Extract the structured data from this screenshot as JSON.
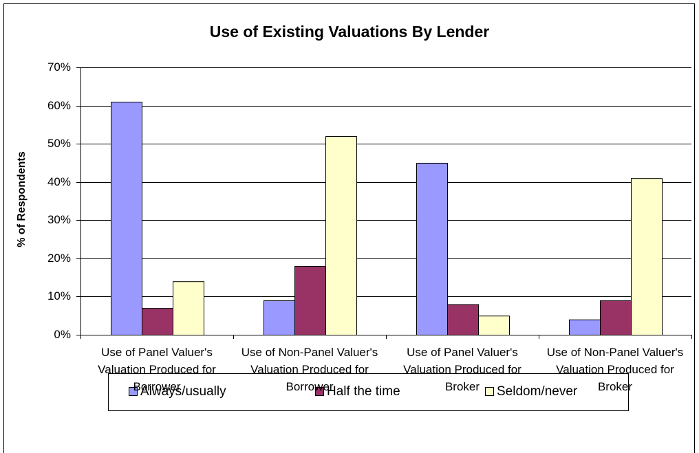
{
  "chart_data": {
    "type": "bar",
    "title": "Use of Existing Valuations By Lender",
    "y_label": "% of Respondents",
    "categories": [
      "Use of Panel Valuer's Valuation Produced for Borrower",
      "Use of Non-Panel Valuer's Valuation Produced for Borrower",
      "Use of Panel Valuer's Valuation Produced for Broker",
      "Use of Non-Panel Valuer's Valuation Produced for Broker"
    ],
    "series": [
      {
        "name": "Always/usually",
        "color": "#9999ff",
        "values": [
          61,
          9,
          45,
          4
        ]
      },
      {
        "name": "Half the time",
        "color": "#993366",
        "values": [
          7,
          18,
          8,
          9
        ]
      },
      {
        "name": "Seldom/never",
        "color": "#ffffcc",
        "values": [
          14,
          52,
          5,
          41
        ]
      }
    ],
    "ylim": [
      0,
      70
    ],
    "yticks": [
      {
        "value": 0,
        "label": "0%"
      },
      {
        "value": 10,
        "label": "10%"
      },
      {
        "value": 20,
        "label": "20%"
      },
      {
        "value": 30,
        "label": "30%"
      },
      {
        "value": 40,
        "label": "40%"
      },
      {
        "value": 50,
        "label": "50%"
      },
      {
        "value": 60,
        "label": "60%"
      },
      {
        "value": 70,
        "label": "70%"
      }
    ],
    "grid": true,
    "legend": "bottom"
  }
}
